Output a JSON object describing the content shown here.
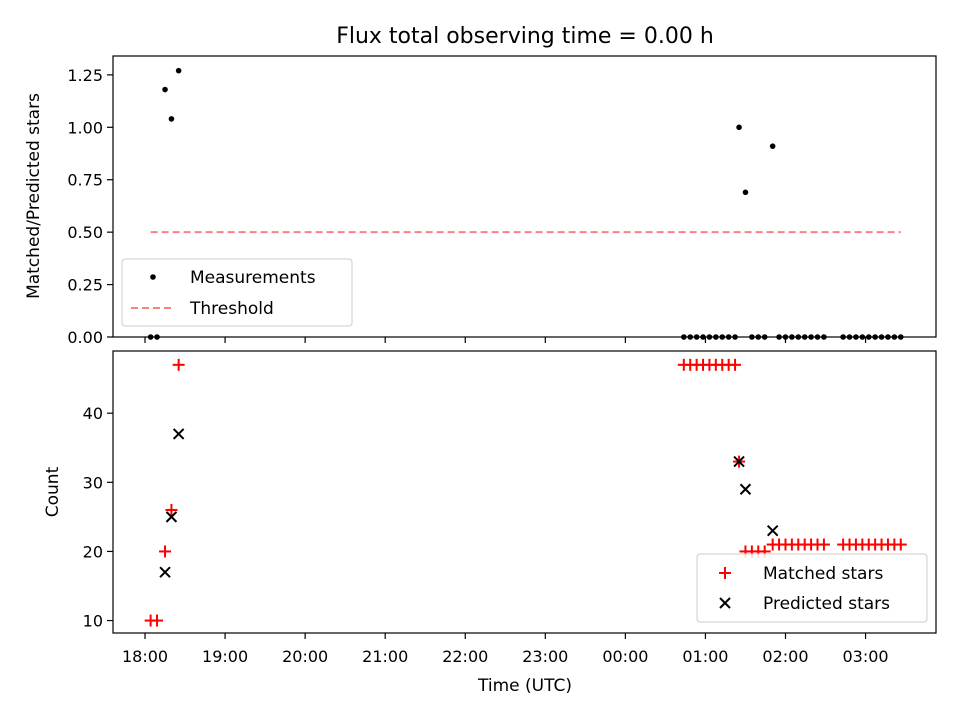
{
  "figure": {
    "title": "Flux total observing time = 0.00 h",
    "xlabel": "Time (UTC)",
    "xticks": [
      {
        "value": 18.0,
        "label": "18:00"
      },
      {
        "value": 19.0,
        "label": "19:00"
      },
      {
        "value": 20.0,
        "label": "20:00"
      },
      {
        "value": 21.0,
        "label": "21:00"
      },
      {
        "value": 22.0,
        "label": "22:00"
      },
      {
        "value": 23.0,
        "label": "23:00"
      },
      {
        "value": 24.0,
        "label": "00:00"
      },
      {
        "value": 25.0,
        "label": "01:00"
      },
      {
        "value": 26.0,
        "label": "02:00"
      },
      {
        "value": 27.0,
        "label": "03:00"
      }
    ]
  },
  "chart_data": [
    {
      "type": "scatter",
      "ylabel": "Matched/Predicted stars",
      "xlim": [
        17.6,
        27.88
      ],
      "ylim": [
        0,
        1.34
      ],
      "yticks": [
        {
          "value": 0.0,
          "label": "0.00"
        },
        {
          "value": 0.25,
          "label": "0.25"
        },
        {
          "value": 0.5,
          "label": "0.50"
        },
        {
          "value": 0.75,
          "label": "0.75"
        },
        {
          "value": 1.0,
          "label": "1.00"
        },
        {
          "value": 1.25,
          "label": "1.25"
        }
      ],
      "legend": {
        "position": "lower-left",
        "entries": [
          {
            "name": "Measurements",
            "marker": "dot",
            "color": "#000000"
          },
          {
            "name": "Threshold",
            "marker": "dashed-line",
            "color": "#ff7f7f"
          }
        ]
      },
      "series": [
        {
          "name": "Measurements",
          "color": "#000000",
          "points": [
            {
              "x": 18.07,
              "y": 0.0
            },
            {
              "x": 18.15,
              "y": 0.0
            },
            {
              "x": 18.25,
              "y": 1.18
            },
            {
              "x": 18.33,
              "y": 1.04
            },
            {
              "x": 18.42,
              "y": 1.27
            },
            {
              "x": 24.73,
              "y": 0.0
            },
            {
              "x": 24.81,
              "y": 0.0
            },
            {
              "x": 24.89,
              "y": 0.0
            },
            {
              "x": 24.97,
              "y": 0.0
            },
            {
              "x": 25.05,
              "y": 0.0
            },
            {
              "x": 25.13,
              "y": 0.0
            },
            {
              "x": 25.21,
              "y": 0.0
            },
            {
              "x": 25.29,
              "y": 0.0
            },
            {
              "x": 25.37,
              "y": 0.0
            },
            {
              "x": 25.42,
              "y": 1.0
            },
            {
              "x": 25.5,
              "y": 0.69
            },
            {
              "x": 25.58,
              "y": 0.0
            },
            {
              "x": 25.66,
              "y": 0.0
            },
            {
              "x": 25.74,
              "y": 0.0
            },
            {
              "x": 25.84,
              "y": 0.91
            },
            {
              "x": 25.92,
              "y": 0.0
            },
            {
              "x": 26.0,
              "y": 0.0
            },
            {
              "x": 26.08,
              "y": 0.0
            },
            {
              "x": 26.16,
              "y": 0.0
            },
            {
              "x": 26.24,
              "y": 0.0
            },
            {
              "x": 26.32,
              "y": 0.0
            },
            {
              "x": 26.4,
              "y": 0.0
            },
            {
              "x": 26.48,
              "y": 0.0
            },
            {
              "x": 26.72,
              "y": 0.0
            },
            {
              "x": 26.8,
              "y": 0.0
            },
            {
              "x": 26.88,
              "y": 0.0
            },
            {
              "x": 26.96,
              "y": 0.0
            },
            {
              "x": 27.04,
              "y": 0.0
            },
            {
              "x": 27.12,
              "y": 0.0
            },
            {
              "x": 27.2,
              "y": 0.0
            },
            {
              "x": 27.28,
              "y": 0.0
            },
            {
              "x": 27.36,
              "y": 0.0
            },
            {
              "x": 27.44,
              "y": 0.0
            }
          ]
        }
      ],
      "threshold": {
        "name": "Threshold",
        "y": 0.5,
        "x": [
          18.07,
          27.44
        ],
        "color": "#ff7f7f"
      }
    },
    {
      "type": "scatter",
      "ylabel": "Count",
      "xlim": [
        17.6,
        27.88
      ],
      "ylim": [
        8.2,
        49.0
      ],
      "yticks": [
        {
          "value": 10,
          "label": "10"
        },
        {
          "value": 20,
          "label": "20"
        },
        {
          "value": 30,
          "label": "30"
        },
        {
          "value": 40,
          "label": "40"
        }
      ],
      "legend": {
        "position": "lower-right",
        "entries": [
          {
            "name": "Matched stars",
            "marker": "plus",
            "color": "#ff0000"
          },
          {
            "name": "Predicted stars",
            "marker": "x",
            "color": "#000000"
          }
        ]
      },
      "series": [
        {
          "name": "Matched stars",
          "marker": "plus",
          "color": "#ff0000",
          "points": [
            {
              "x": 18.07,
              "y": 10
            },
            {
              "x": 18.15,
              "y": 10
            },
            {
              "x": 18.25,
              "y": 20
            },
            {
              "x": 18.33,
              "y": 26
            },
            {
              "x": 18.42,
              "y": 47
            },
            {
              "x": 24.73,
              "y": 47
            },
            {
              "x": 24.81,
              "y": 47
            },
            {
              "x": 24.89,
              "y": 47
            },
            {
              "x": 24.97,
              "y": 47
            },
            {
              "x": 25.05,
              "y": 47
            },
            {
              "x": 25.13,
              "y": 47
            },
            {
              "x": 25.21,
              "y": 47
            },
            {
              "x": 25.29,
              "y": 47
            },
            {
              "x": 25.37,
              "y": 47
            },
            {
              "x": 25.42,
              "y": 33
            },
            {
              "x": 25.5,
              "y": 20
            },
            {
              "x": 25.58,
              "y": 20
            },
            {
              "x": 25.66,
              "y": 20
            },
            {
              "x": 25.74,
              "y": 20
            },
            {
              "x": 25.84,
              "y": 21
            },
            {
              "x": 25.92,
              "y": 21
            },
            {
              "x": 26.0,
              "y": 21
            },
            {
              "x": 26.08,
              "y": 21
            },
            {
              "x": 26.16,
              "y": 21
            },
            {
              "x": 26.24,
              "y": 21
            },
            {
              "x": 26.32,
              "y": 21
            },
            {
              "x": 26.4,
              "y": 21
            },
            {
              "x": 26.48,
              "y": 21
            },
            {
              "x": 26.72,
              "y": 21
            },
            {
              "x": 26.8,
              "y": 21
            },
            {
              "x": 26.88,
              "y": 21
            },
            {
              "x": 26.96,
              "y": 21
            },
            {
              "x": 27.04,
              "y": 21
            },
            {
              "x": 27.12,
              "y": 21
            },
            {
              "x": 27.2,
              "y": 21
            },
            {
              "x": 27.28,
              "y": 21
            },
            {
              "x": 27.36,
              "y": 21
            },
            {
              "x": 27.44,
              "y": 21
            }
          ]
        },
        {
          "name": "Predicted stars",
          "marker": "x",
          "color": "#000000",
          "points": [
            {
              "x": 18.25,
              "y": 17
            },
            {
              "x": 18.33,
              "y": 25
            },
            {
              "x": 18.42,
              "y": 37
            },
            {
              "x": 25.42,
              "y": 33
            },
            {
              "x": 25.5,
              "y": 29
            },
            {
              "x": 25.84,
              "y": 23
            }
          ]
        }
      ]
    }
  ]
}
